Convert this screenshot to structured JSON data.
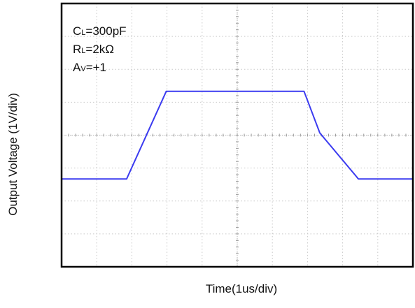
{
  "chart_data": {
    "type": "line",
    "xlabel": "Time(1us/div)",
    "ylabel": "Output Voltage (1V/div)",
    "grid": true,
    "xlim": [
      0,
      10
    ],
    "ylim": [
      -2,
      4
    ],
    "x_divisions": 10,
    "y_divisions": 8,
    "annotations": [
      {
        "main": "C",
        "sub": "L",
        "rest": "=300pF"
      },
      {
        "main": "R",
        "sub": "L",
        "rest": "=2kΩ"
      },
      {
        "main": "A",
        "sub": "V",
        "rest": "=+1"
      }
    ],
    "series": [
      {
        "x": [
          0,
          1.85,
          2.98,
          6.9,
          7.35,
          8.45,
          10
        ],
        "y": [
          0,
          0,
          2,
          2,
          1.05,
          0,
          0
        ]
      }
    ],
    "colors": {
      "trace": "#3b3bf0",
      "grid": "#c8c8c8",
      "frame": "#000000"
    }
  }
}
